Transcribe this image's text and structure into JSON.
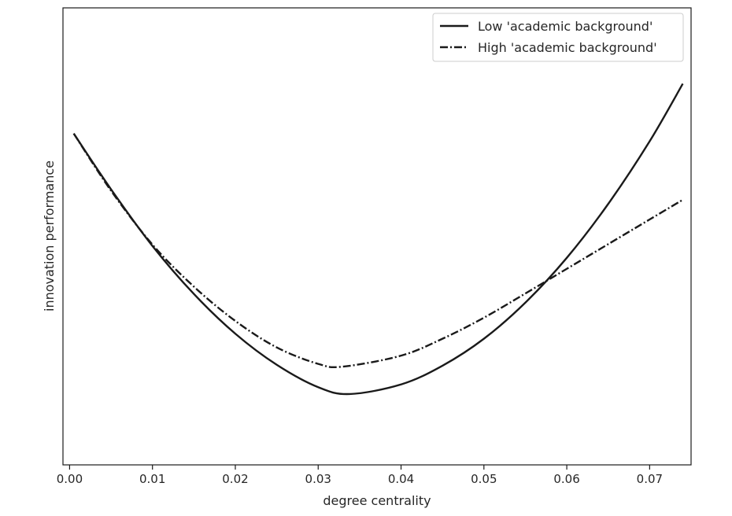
{
  "chart_data": {
    "type": "line",
    "xlabel": "degree centrality",
    "ylabel": "innovation performance",
    "xlim": [
      -0.0008,
      0.075
    ],
    "ylim": [
      0,
      1
    ],
    "x_ticks": [
      0.0,
      0.01,
      0.02,
      0.03,
      0.04,
      0.05,
      0.06,
      0.07
    ],
    "x_tick_labels": [
      "0.00",
      "0.01",
      "0.02",
      "0.03",
      "0.04",
      "0.05",
      "0.06",
      "0.07"
    ],
    "y_ticks_visible": false,
    "grid": false,
    "legend_position": "top-right",
    "series": [
      {
        "name": "Low 'academic background'",
        "line_style": "solid",
        "color": "#1a1a1a",
        "x": [
          0.0005,
          0.005,
          0.01,
          0.015,
          0.02,
          0.025,
          0.03,
          0.0338,
          0.04,
          0.045,
          0.05,
          0.055,
          0.06,
          0.065,
          0.07,
          0.074
        ],
        "y": [
          0.725,
          0.603,
          0.479,
          0.374,
          0.287,
          0.219,
          0.17,
          0.155,
          0.176,
          0.217,
          0.276,
          0.355,
          0.453,
          0.571,
          0.708,
          0.834
        ]
      },
      {
        "name": "High 'academic background'",
        "line_style": "dashdot",
        "color": "#1a1a1a",
        "x": [
          0.0005,
          0.005,
          0.01,
          0.015,
          0.02,
          0.025,
          0.03,
          0.033,
          0.04,
          0.045,
          0.05,
          0.055,
          0.06,
          0.065,
          0.07,
          0.074
        ],
        "y": [
          0.725,
          0.6,
          0.482,
          0.39,
          0.315,
          0.257,
          0.221,
          0.215,
          0.239,
          0.276,
          0.322,
          0.375,
          0.429,
          0.483,
          0.537,
          0.58
        ]
      }
    ]
  }
}
